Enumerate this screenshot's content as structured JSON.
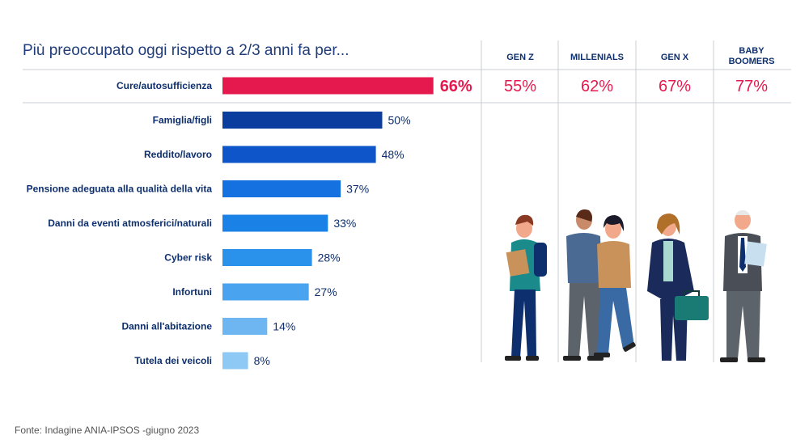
{
  "title": "Più preoccupato oggi rispetto a 2/3 anni fa per...",
  "source": "Fonte: Indagine ANIA-IPSOS -giugno 2023",
  "colors": {
    "highlight": "#e5194e",
    "text_dark": "#0e2f6e",
    "bar_shades": [
      "#e5194e",
      "#0a3d9e",
      "#0d55c8",
      "#1571e0",
      "#1a82e6",
      "#2a92ea",
      "#4aa3ee",
      "#6db6f2",
      "#8ec8f5"
    ]
  },
  "generations": {
    "headers": [
      [
        "GEN Z"
      ],
      [
        "MILLENIALS"
      ],
      [
        "GEN X"
      ],
      [
        "BABY",
        "BOOMERS"
      ]
    ],
    "values": [
      "55%",
      "62%",
      "67%",
      "77%"
    ]
  },
  "illustration": {
    "description_icon": "people-generations-illustration"
  },
  "chart_data": {
    "type": "bar",
    "orientation": "horizontal",
    "title": "Più preoccupato oggi rispetto a 2/3 anni fa per...",
    "categories": [
      "Cure/autosufficienza",
      "Famiglia/figli",
      "Reddito/lavoro",
      "Pensione adeguata alla qualità della vita",
      "Danni da eventi atmosferici/naturali",
      "Cyber risk",
      "Infortuni",
      "Danni all'abitazione",
      "Tutela dei veicoli"
    ],
    "values": [
      66,
      50,
      48,
      37,
      33,
      28,
      27,
      14,
      8
    ],
    "value_labels": [
      "66%",
      "50%",
      "48%",
      "37%",
      "33%",
      "28%",
      "27%",
      "14%",
      "8%"
    ],
    "unit": "%",
    "xlim": [
      0,
      100
    ],
    "grid": false,
    "legend": "none"
  }
}
